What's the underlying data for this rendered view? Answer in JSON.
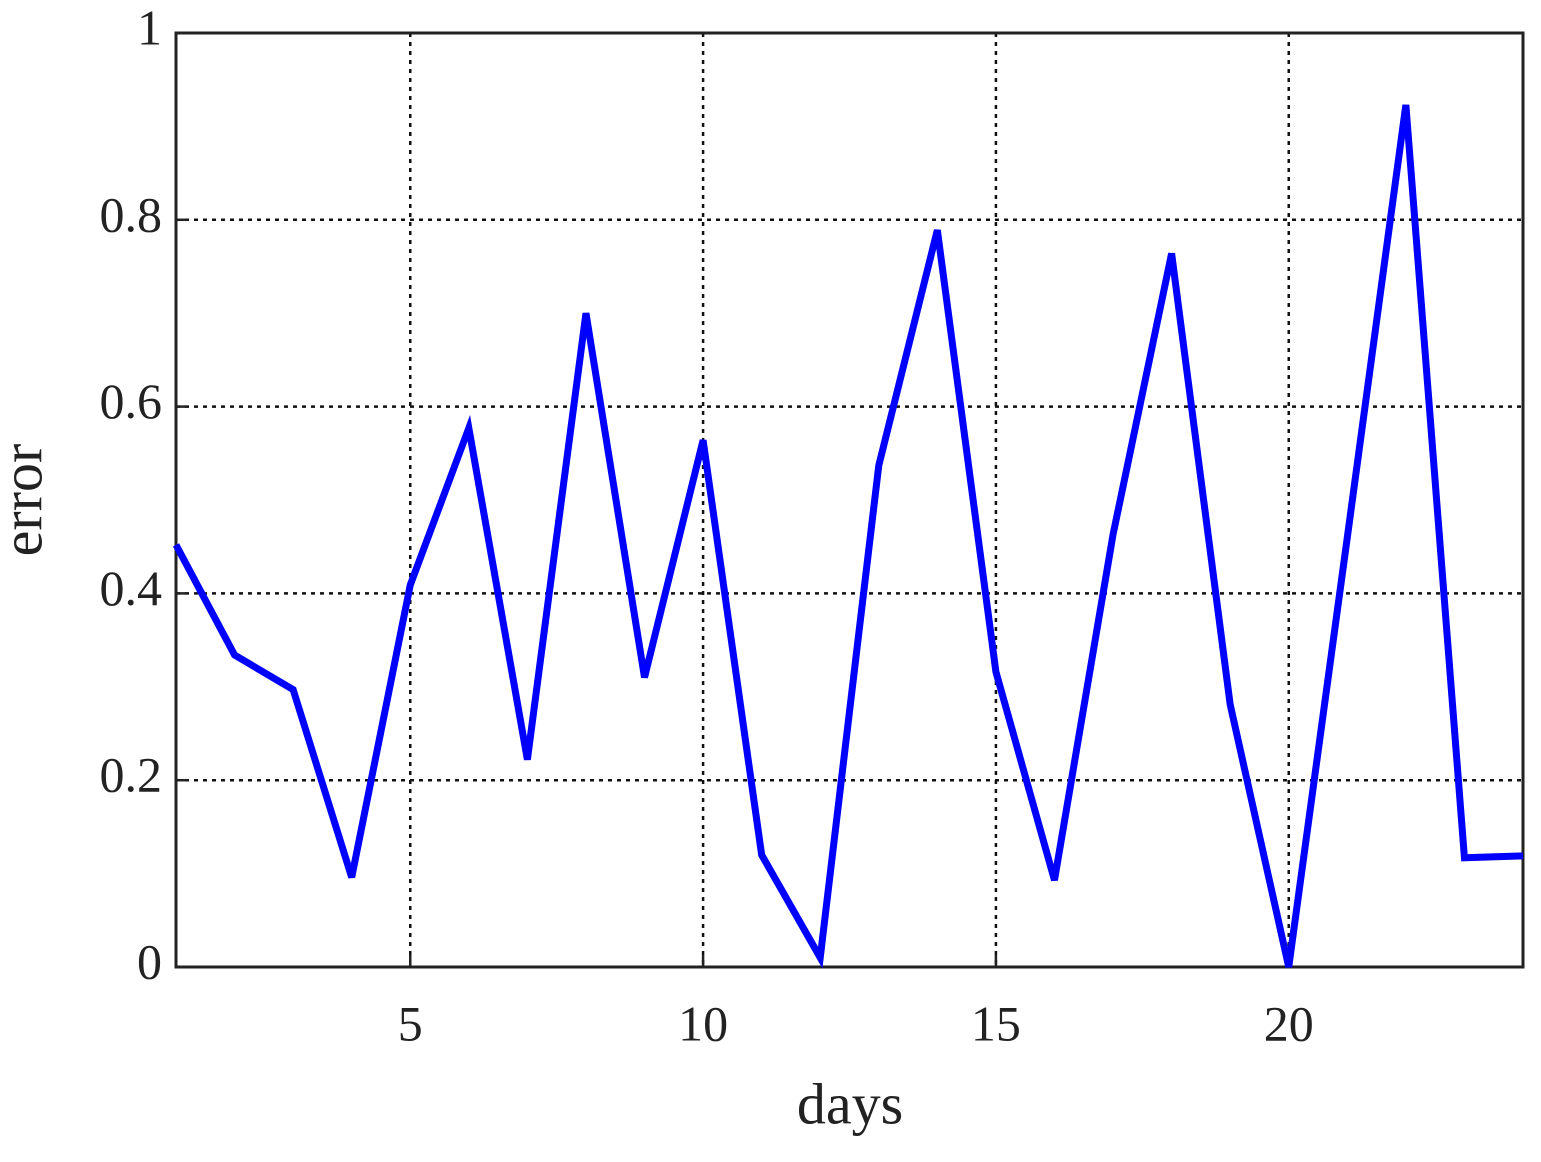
{
  "chart_data": {
    "type": "line",
    "x_label": "days",
    "y_label": "error",
    "x": [
      1,
      2,
      3,
      4,
      5,
      6,
      7,
      8,
      9,
      10,
      11,
      12,
      13,
      14,
      15,
      16,
      17,
      18,
      19,
      20,
      21,
      22,
      23,
      24
    ],
    "series": [
      {
        "color": "#0000ff",
        "values": [
          0.452,
          0.334,
          0.297,
          0.096,
          0.409,
          0.577,
          0.222,
          0.7,
          0.31,
          0.564,
          0.12,
          0.01,
          0.537,
          0.789,
          0.316,
          0.093,
          0.463,
          0.764,
          0.281,
          0.0,
          0.46,
          0.923,
          0.117,
          0.119
        ]
      }
    ],
    "xlim": [
      1,
      24
    ],
    "ylim": [
      0,
      1
    ],
    "xticks": [
      5,
      10,
      15,
      20
    ],
    "yticks": [
      0,
      0.2,
      0.4,
      0.6,
      0.8,
      1
    ],
    "grid": true
  }
}
